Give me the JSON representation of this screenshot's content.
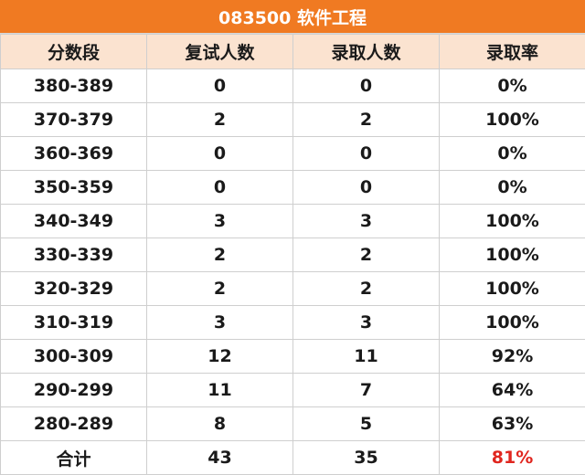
{
  "title": "083500 软件工程",
  "headers": [
    "分数段",
    "复试人数",
    "录取人数",
    "录取率"
  ],
  "rows": [
    {
      "range": "380-389",
      "retest": "0",
      "admitted": "0",
      "rate": "0%"
    },
    {
      "range": "370-379",
      "retest": "2",
      "admitted": "2",
      "rate": "100%"
    },
    {
      "range": "360-369",
      "retest": "0",
      "admitted": "0",
      "rate": "0%"
    },
    {
      "range": "350-359",
      "retest": "0",
      "admitted": "0",
      "rate": "0%"
    },
    {
      "range": "340-349",
      "retest": "3",
      "admitted": "3",
      "rate": "100%"
    },
    {
      "range": "330-339",
      "retest": "2",
      "admitted": "2",
      "rate": "100%"
    },
    {
      "range": "320-329",
      "retest": "2",
      "admitted": "2",
      "rate": "100%"
    },
    {
      "range": "310-319",
      "retest": "3",
      "admitted": "3",
      "rate": "100%"
    },
    {
      "range": "300-309",
      "retest": "12",
      "admitted": "11",
      "rate": "92%"
    },
    {
      "range": "290-299",
      "retest": "11",
      "admitted": "7",
      "rate": "64%"
    },
    {
      "range": "280-289",
      "retest": "8",
      "admitted": "5",
      "rate": "63%"
    }
  ],
  "total": {
    "label": "合计",
    "retest": "43",
    "admitted": "35",
    "rate": "81%"
  },
  "colors": {
    "title_bg": "#f07a22",
    "header_bg": "#fbe3d0",
    "highlight_text": "#e0261f"
  }
}
